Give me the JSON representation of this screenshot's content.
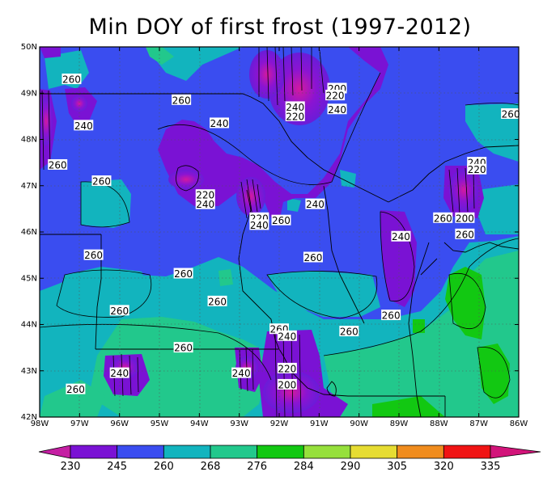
{
  "title": "Min DOY of first frost (1997-2012)",
  "axes": {
    "x_ticks": [
      "98W",
      "97W",
      "96W",
      "95W",
      "94W",
      "93W",
      "92W",
      "91W",
      "90W",
      "89W",
      "88W",
      "87W",
      "86W"
    ],
    "y_ticks": [
      "50N",
      "49N",
      "48N",
      "47N",
      "46N",
      "45N",
      "44N",
      "43N",
      "42N"
    ],
    "lon_range": [
      -98,
      -86
    ],
    "lat_range": [
      42,
      50
    ],
    "grid": "dotted"
  },
  "colorbar": {
    "levels": [
      "230",
      "245",
      "260",
      "268",
      "276",
      "284",
      "290",
      "305",
      "320",
      "335"
    ],
    "colors": [
      "#c51fa3",
      "#7a12d4",
      "#3a4df0",
      "#12b4be",
      "#22c88c",
      "#12c812",
      "#96e03c",
      "#e6dc32",
      "#f08c1e",
      "#f01414",
      "#d2147a"
    ],
    "extend": "both"
  },
  "contour_labels": [
    {
      "text": "260",
      "lon": -97.2,
      "lat": 49.3
    },
    {
      "text": "260",
      "lon": -94.45,
      "lat": 48.85
    },
    {
      "text": "240",
      "lon": -96.9,
      "lat": 48.3
    },
    {
      "text": "260",
      "lon": -97.55,
      "lat": 47.45
    },
    {
      "text": "260",
      "lon": -96.45,
      "lat": 47.1
    },
    {
      "text": "240",
      "lon": -93.5,
      "lat": 48.35
    },
    {
      "text": "200",
      "lon": -90.55,
      "lat": 49.1
    },
    {
      "text": "220",
      "lon": -90.6,
      "lat": 48.95
    },
    {
      "text": "240",
      "lon": -91.6,
      "lat": 48.7
    },
    {
      "text": "220",
      "lon": -91.6,
      "lat": 48.5
    },
    {
      "text": "240",
      "lon": -90.55,
      "lat": 48.65
    },
    {
      "text": "240",
      "lon": -87.05,
      "lat": 47.5
    },
    {
      "text": "220",
      "lon": -87.05,
      "lat": 47.35
    },
    {
      "text": "260",
      "lon": -86.2,
      "lat": 48.55
    },
    {
      "text": "220",
      "lon": -93.85,
      "lat": 46.8
    },
    {
      "text": "240",
      "lon": -93.85,
      "lat": 46.6
    },
    {
      "text": "240",
      "lon": -91.1,
      "lat": 46.6
    },
    {
      "text": "220",
      "lon": -92.5,
      "lat": 46.3
    },
    {
      "text": "260",
      "lon": -91.95,
      "lat": 46.25
    },
    {
      "text": "240",
      "lon": -92.5,
      "lat": 46.15
    },
    {
      "text": "260",
      "lon": -87.9,
      "lat": 46.3
    },
    {
      "text": "200",
      "lon": -87.35,
      "lat": 46.3
    },
    {
      "text": "260",
      "lon": -87.35,
      "lat": 45.95
    },
    {
      "text": "240",
      "lon": -88.95,
      "lat": 45.9
    },
    {
      "text": "260",
      "lon": -96.65,
      "lat": 45.5
    },
    {
      "text": "260",
      "lon": -91.15,
      "lat": 45.45
    },
    {
      "text": "260",
      "lon": -94.4,
      "lat": 45.1
    },
    {
      "text": "260",
      "lon": -93.55,
      "lat": 44.5
    },
    {
      "text": "260",
      "lon": -96.0,
      "lat": 44.3
    },
    {
      "text": "260",
      "lon": -89.2,
      "lat": 44.2
    },
    {
      "text": "260",
      "lon": -92.0,
      "lat": 43.9
    },
    {
      "text": "240",
      "lon": -91.8,
      "lat": 43.75
    },
    {
      "text": "260",
      "lon": -90.25,
      "lat": 43.85
    },
    {
      "text": "260",
      "lon": -94.4,
      "lat": 43.5
    },
    {
      "text": "240",
      "lon": -96.0,
      "lat": 42.95
    },
    {
      "text": "220",
      "lon": -91.8,
      "lat": 43.05
    },
    {
      "text": "240",
      "lon": -92.95,
      "lat": 42.95
    },
    {
      "text": "200",
      "lon": -91.8,
      "lat": 42.7
    },
    {
      "text": "260",
      "lon": -97.1,
      "lat": 42.6
    }
  ]
}
